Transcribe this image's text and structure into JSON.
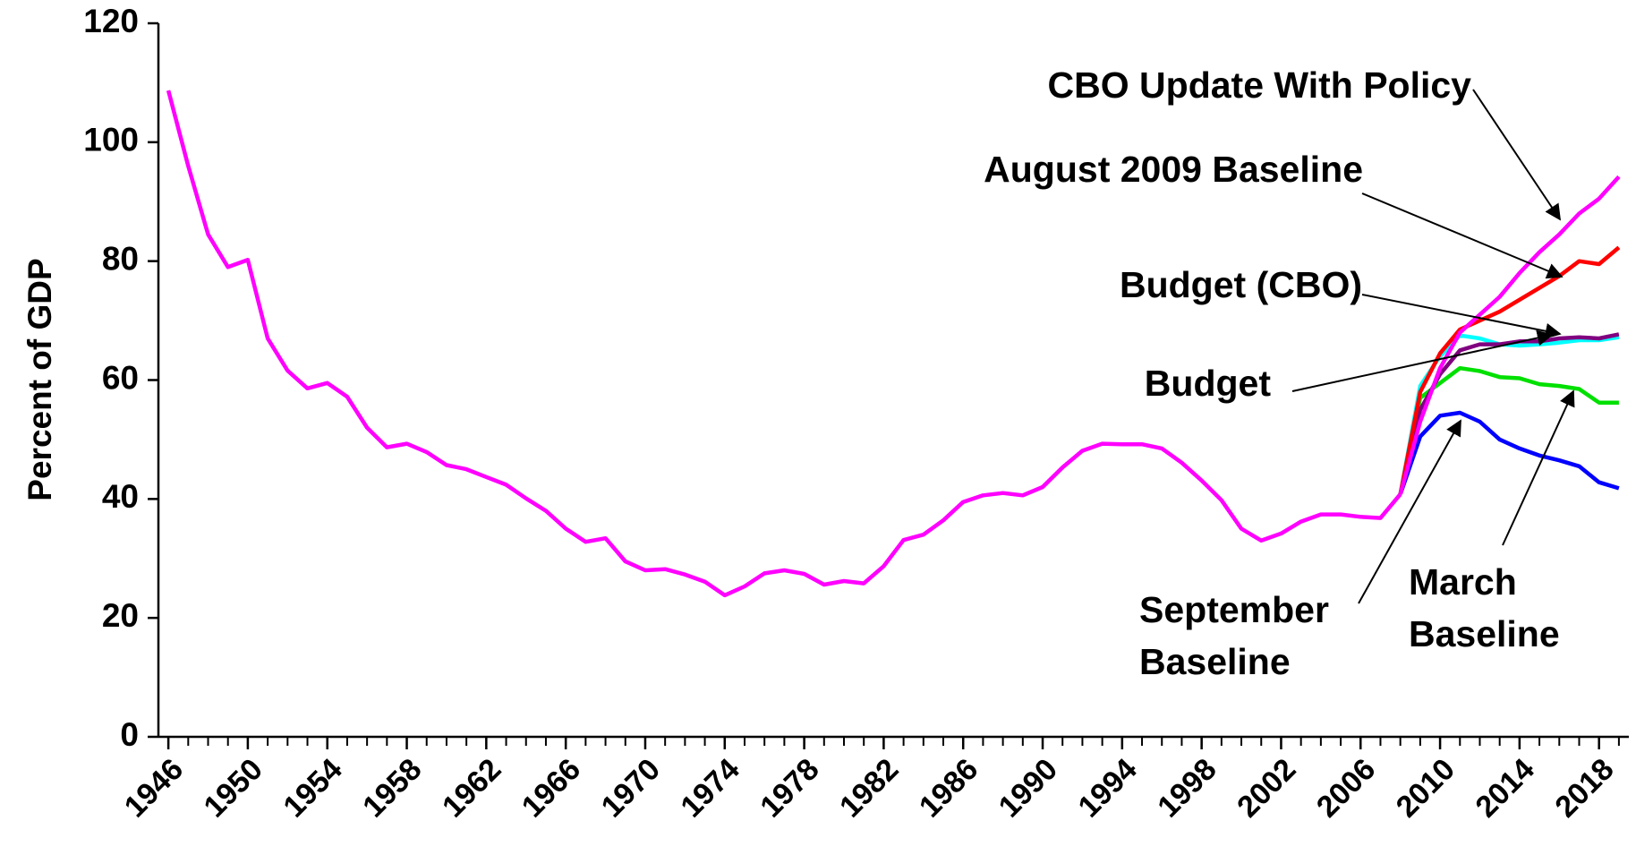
{
  "chart_data": {
    "type": "line",
    "y_label": "Percent of GDP",
    "x": [
      1946,
      1947,
      1948,
      1949,
      1950,
      1951,
      1952,
      1953,
      1954,
      1955,
      1956,
      1957,
      1958,
      1959,
      1960,
      1961,
      1962,
      1963,
      1964,
      1965,
      1966,
      1967,
      1968,
      1969,
      1970,
      1971,
      1972,
      1973,
      1974,
      1975,
      1976,
      1977,
      1978,
      1979,
      1980,
      1981,
      1982,
      1983,
      1984,
      1985,
      1986,
      1987,
      1988,
      1989,
      1990,
      1991,
      1992,
      1993,
      1994,
      1995,
      1996,
      1997,
      1998,
      1999,
      2000,
      2001,
      2002,
      2003,
      2004,
      2005,
      2006,
      2007,
      2008,
      2009,
      2010,
      2011,
      2012,
      2013,
      2014,
      2015,
      2016,
      2017,
      2018,
      2019
    ],
    "xlim": [
      1945.5,
      2019.5
    ],
    "xticks": [
      1946,
      1950,
      1954,
      1958,
      1962,
      1966,
      1970,
      1974,
      1978,
      1982,
      1986,
      1990,
      1994,
      1998,
      2002,
      2006,
      2010,
      2014,
      2018
    ],
    "ylim": [
      0,
      120
    ],
    "yticks": [
      0,
      20,
      40,
      60,
      80,
      100,
      120
    ],
    "series": [
      {
        "color": "#ff00ff",
        "values": [
          108.7,
          96,
          84.5,
          79,
          80.2,
          67,
          61.6,
          58.6,
          59.5,
          57.2,
          52,
          48.7,
          49.3,
          47.9,
          45.7,
          45,
          43.7,
          42.4,
          40.1,
          38,
          35,
          32.8,
          33.4,
          29.5,
          28,
          28.2,
          27.3,
          26.1,
          23.8,
          25.3,
          27.5,
          28,
          27.4,
          25.6,
          26.2,
          25.8,
          28.7,
          33.1,
          34,
          36.4,
          39.5,
          40.6,
          41,
          40.6,
          42,
          45.3,
          48.1,
          49.3,
          49.2,
          49.2,
          48.5,
          46.1,
          43.1,
          39.8,
          35,
          33,
          34.2,
          36.2,
          37.4,
          37.4,
          37,
          36.8,
          40.8,
          null,
          null,
          null,
          null,
          null,
          null,
          null,
          null,
          null,
          null,
          null
        ]
      },
      {
        "name": "September Baseline",
        "color": "#0000ff",
        "values": [
          null,
          null,
          null,
          null,
          null,
          null,
          null,
          null,
          null,
          null,
          null,
          null,
          null,
          null,
          null,
          null,
          null,
          null,
          null,
          null,
          null,
          null,
          null,
          null,
          null,
          null,
          null,
          null,
          null,
          null,
          null,
          null,
          null,
          null,
          null,
          null,
          null,
          null,
          null,
          null,
          null,
          null,
          null,
          null,
          null,
          null,
          null,
          null,
          null,
          null,
          null,
          null,
          null,
          null,
          null,
          null,
          null,
          null,
          null,
          null,
          null,
          null,
          40.8,
          50.5,
          54,
          54.5,
          53,
          50,
          48.5,
          47.3,
          46.5,
          45.5,
          42.8,
          41.8
        ]
      },
      {
        "name": "March Baseline",
        "color": "#00e000",
        "values": [
          null,
          null,
          null,
          null,
          null,
          null,
          null,
          null,
          null,
          null,
          null,
          null,
          null,
          null,
          null,
          null,
          null,
          null,
          null,
          null,
          null,
          null,
          null,
          null,
          null,
          null,
          null,
          null,
          null,
          null,
          null,
          null,
          null,
          null,
          null,
          null,
          null,
          null,
          null,
          null,
          null,
          null,
          null,
          null,
          null,
          null,
          null,
          null,
          null,
          null,
          null,
          null,
          null,
          null,
          null,
          null,
          null,
          null,
          null,
          null,
          null,
          null,
          40.8,
          57,
          59.5,
          62,
          61.5,
          60.5,
          60.3,
          59.3,
          59,
          58.5,
          56.2,
          56.2
        ]
      },
      {
        "name": "Budget",
        "color": "#00ffff",
        "values": [
          null,
          null,
          null,
          null,
          null,
          null,
          null,
          null,
          null,
          null,
          null,
          null,
          null,
          null,
          null,
          null,
          null,
          null,
          null,
          null,
          null,
          null,
          null,
          null,
          null,
          null,
          null,
          null,
          null,
          null,
          null,
          null,
          null,
          null,
          null,
          null,
          null,
          null,
          null,
          null,
          null,
          null,
          null,
          null,
          null,
          null,
          null,
          null,
          null,
          null,
          null,
          null,
          null,
          null,
          null,
          null,
          null,
          null,
          null,
          null,
          null,
          null,
          40.8,
          59,
          64,
          67.5,
          67,
          66,
          65.8,
          66,
          66.3,
          66.7,
          66.7,
          67.2
        ]
      },
      {
        "name": "Budget (CBO)",
        "color": "#800080",
        "values": [
          null,
          null,
          null,
          null,
          null,
          null,
          null,
          null,
          null,
          null,
          null,
          null,
          null,
          null,
          null,
          null,
          null,
          null,
          null,
          null,
          null,
          null,
          null,
          null,
          null,
          null,
          null,
          null,
          null,
          null,
          null,
          null,
          null,
          null,
          null,
          null,
          null,
          null,
          null,
          null,
          null,
          null,
          null,
          null,
          null,
          null,
          null,
          null,
          null,
          null,
          null,
          null,
          null,
          null,
          null,
          null,
          null,
          null,
          null,
          null,
          null,
          null,
          40.8,
          55,
          61,
          65,
          66,
          66,
          66.5,
          66.5,
          67,
          67.2,
          67,
          67.7
        ]
      },
      {
        "name": "August 2009 Baseline",
        "color": "#ff0000",
        "values": [
          null,
          null,
          null,
          null,
          null,
          null,
          null,
          null,
          null,
          null,
          null,
          null,
          null,
          null,
          null,
          null,
          null,
          null,
          null,
          null,
          null,
          null,
          null,
          null,
          null,
          null,
          null,
          null,
          null,
          null,
          null,
          null,
          null,
          null,
          null,
          null,
          null,
          null,
          null,
          null,
          null,
          null,
          null,
          null,
          null,
          null,
          null,
          null,
          null,
          null,
          null,
          null,
          null,
          null,
          null,
          null,
          null,
          null,
          null,
          null,
          null,
          null,
          40.8,
          58,
          64.5,
          68.5,
          70,
          71.5,
          73.5,
          75.5,
          77.5,
          80,
          79.5,
          82.3
        ]
      },
      {
        "name": "CBO Update With Policy",
        "color": "#ff00ff",
        "values": [
          null,
          null,
          null,
          null,
          null,
          null,
          null,
          null,
          null,
          null,
          null,
          null,
          null,
          null,
          null,
          null,
          null,
          null,
          null,
          null,
          null,
          null,
          null,
          null,
          null,
          null,
          null,
          null,
          null,
          null,
          null,
          null,
          null,
          null,
          null,
          null,
          null,
          null,
          null,
          null,
          null,
          null,
          null,
          null,
          null,
          null,
          null,
          null,
          null,
          null,
          null,
          null,
          null,
          null,
          null,
          null,
          null,
          null,
          null,
          null,
          null,
          null,
          40.8,
          53,
          62,
          68,
          71,
          74,
          78,
          81.5,
          84.5,
          88,
          90.5,
          94.2
        ]
      }
    ]
  }
}
